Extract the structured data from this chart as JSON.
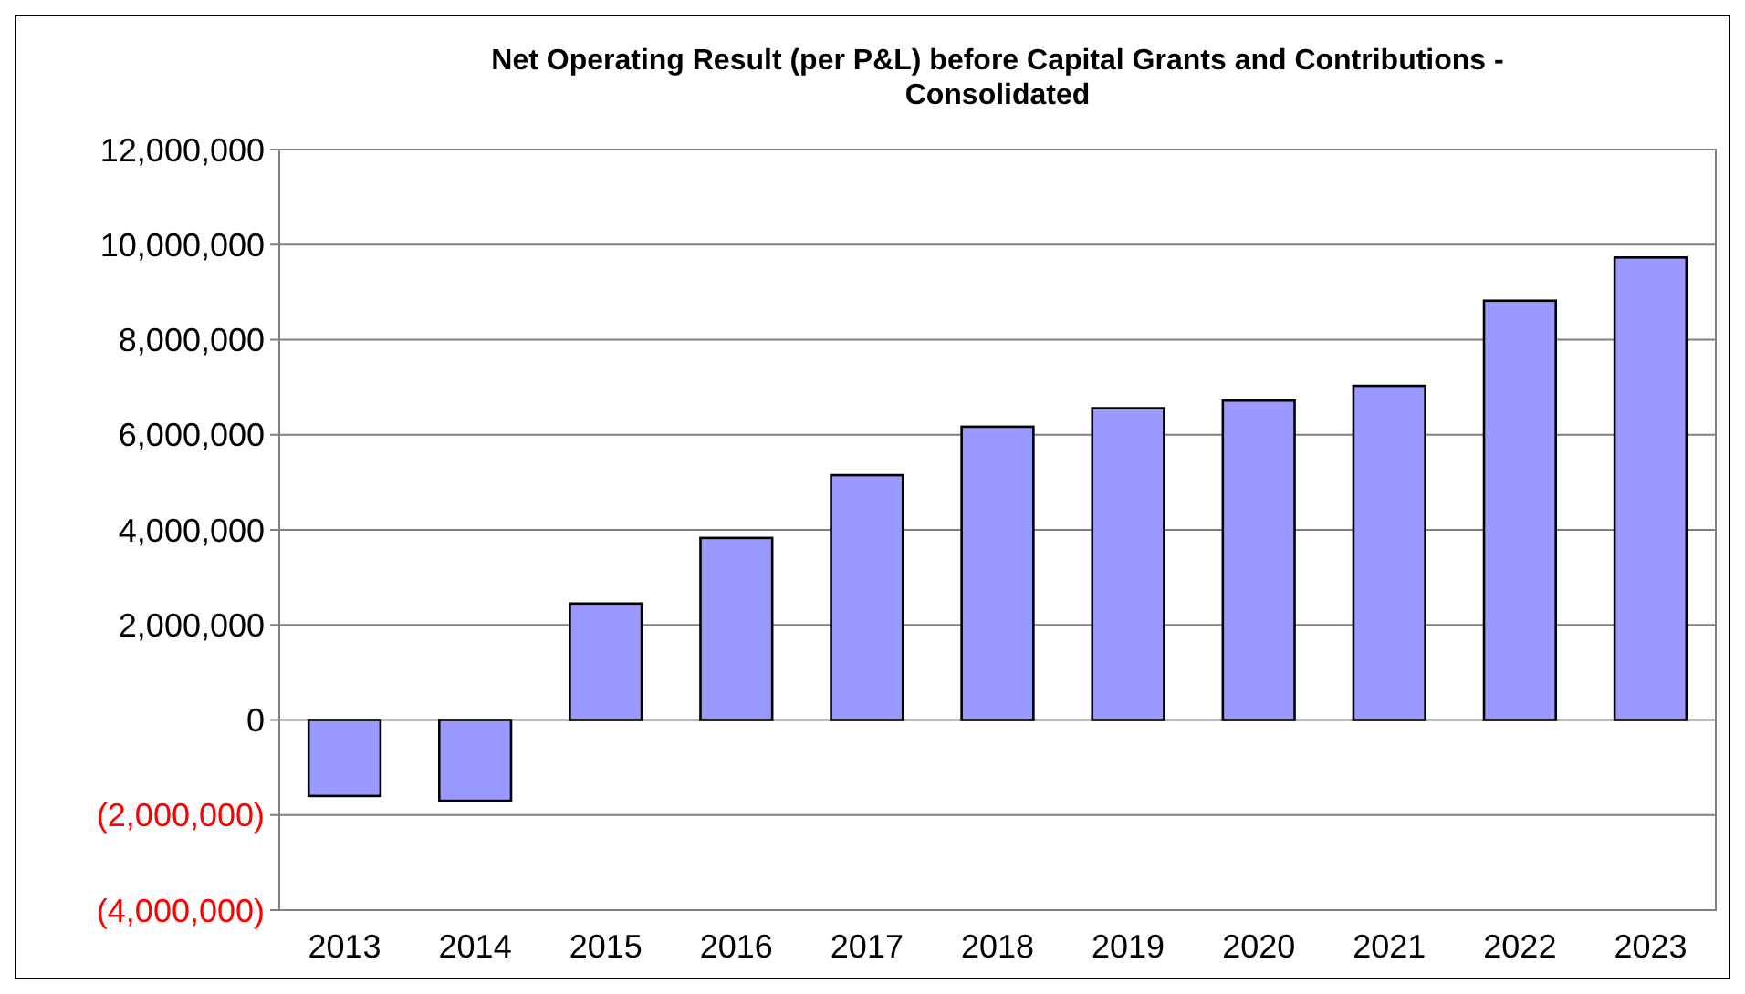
{
  "chart_data": {
    "type": "bar",
    "title": "Net Operating Result (per P&L) before Capital Grants and Contributions - Consolidated",
    "categories": [
      "2013",
      "2014",
      "2015",
      "2016",
      "2017",
      "2018",
      "2019",
      "2020",
      "2021",
      "2022",
      "2023"
    ],
    "values": [
      -1600000,
      -1700000,
      2450000,
      3830000,
      5150000,
      6170000,
      6560000,
      6720000,
      7030000,
      8820000,
      9730000
    ],
    "color": "#9999ff",
    "ylim": [
      -4000000,
      12000000
    ],
    "yticks": [
      {
        "value": -4000000,
        "label": "(4,000,000)"
      },
      {
        "value": -2000000,
        "label": "(2,000,000)"
      },
      {
        "value": 0,
        "label": "0"
      },
      {
        "value": 2000000,
        "label": "2,000,000"
      },
      {
        "value": 4000000,
        "label": "4,000,000"
      },
      {
        "value": 6000000,
        "label": "6,000,000"
      },
      {
        "value": 8000000,
        "label": "8,000,000"
      },
      {
        "value": 10000000,
        "label": "10,000,000"
      },
      {
        "value": 12000000,
        "label": "12,000,000"
      }
    ],
    "grid": "y"
  }
}
